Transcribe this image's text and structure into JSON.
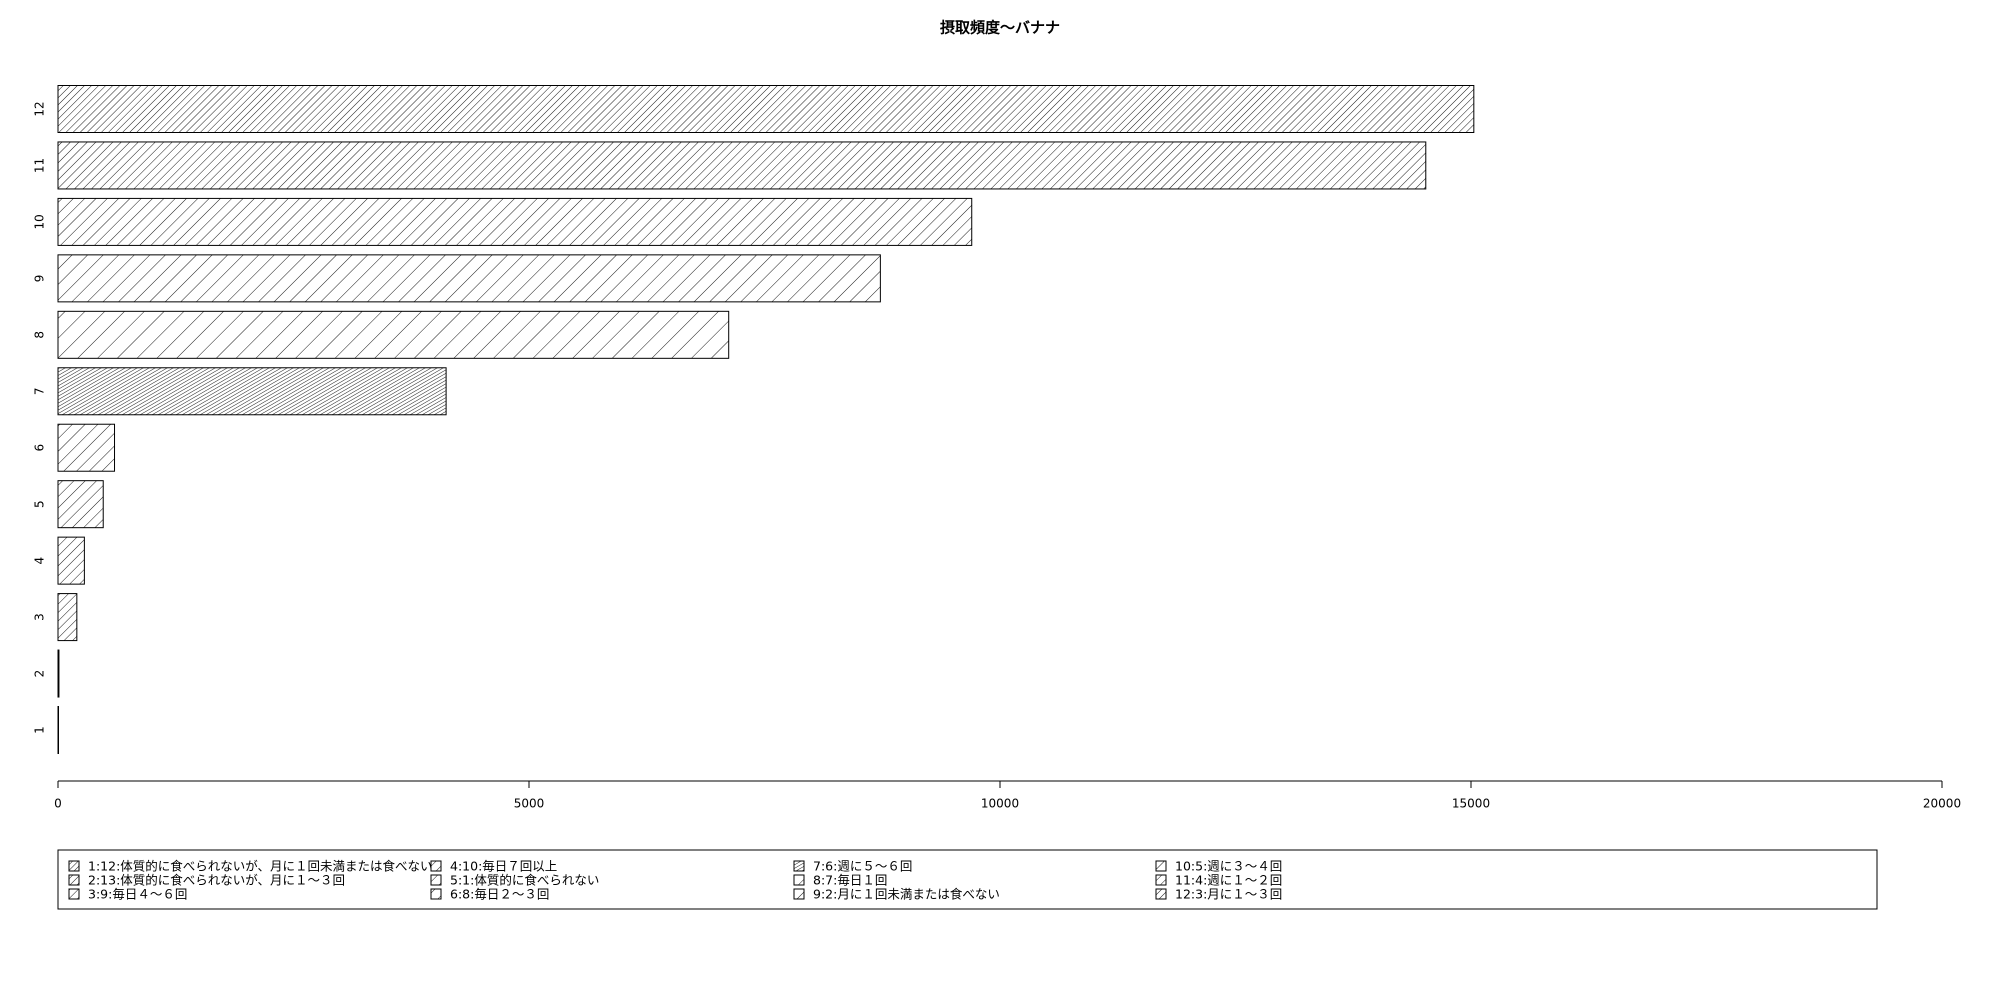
{
  "chart_data": {
    "type": "barh",
    "title": "摂取頻度～バナナ",
    "categories": [
      "1",
      "2",
      "3",
      "4",
      "5",
      "6",
      "7",
      "8",
      "9",
      "10",
      "11",
      "12"
    ],
    "values": [
      5,
      10,
      200,
      280,
      480,
      600,
      4120,
      7120,
      8730,
      9700,
      14520,
      15030
    ],
    "xlim": [
      0,
      20000
    ],
    "xticks": [
      0,
      5000,
      10000,
      15000,
      20000
    ],
    "legend": [
      "1:12:体質的に食べられないが、月に１回未満または食べない",
      "2:13:体質的に食べられないが、月に１～３回",
      "3:9:毎日４～６回",
      "4:10:毎日７回以上",
      "5:1:体質的に食べられない",
      "6:8:毎日２～３回",
      "7:6:週に５～６回",
      "8:7:毎日１回",
      "9:2:月に１回未満または食べない",
      "10:5:週に３～４回",
      "11:4:週に１～２回",
      "12:3:月に１～３回"
    ]
  }
}
